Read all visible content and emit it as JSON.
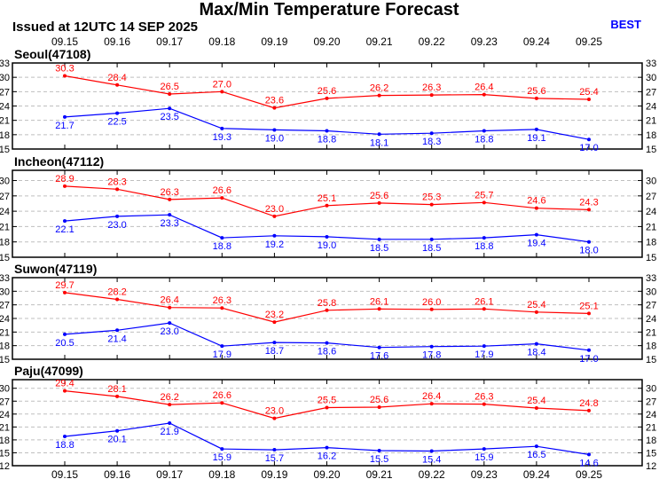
{
  "header": {
    "title": "Max/Min Temperature Forecast",
    "issued": "Issued at 12UTC 14 SEP 2025",
    "model_label": "BEST",
    "model_color": "#0000ff"
  },
  "colors": {
    "max_series": "#ff0000",
    "min_series": "#0000ff",
    "grid": "#bfbfbf"
  },
  "chart_data": [
    {
      "type": "line",
      "title": "Seoul(47108)",
      "x": [
        "09.15",
        "09.16",
        "09.17",
        "09.18",
        "09.19",
        "09.20",
        "09.21",
        "09.22",
        "09.23",
        "09.24",
        "09.25"
      ],
      "ylim": [
        15,
        33
      ],
      "yticks": [
        15,
        18,
        21,
        24,
        27,
        30,
        33
      ],
      "grid": true,
      "series": [
        {
          "values": [
            30.3,
            28.4,
            26.5,
            27.0,
            23.6,
            25.6,
            26.2,
            26.3,
            26.4,
            25.6,
            25.4
          ]
        },
        {
          "values": [
            21.7,
            22.5,
            23.5,
            19.3,
            19.0,
            18.8,
            18.1,
            18.3,
            18.8,
            19.1,
            17.0
          ]
        }
      ]
    },
    {
      "type": "line",
      "title": "Incheon(47112)",
      "x": [
        "09.15",
        "09.16",
        "09.17",
        "09.18",
        "09.19",
        "09.20",
        "09.21",
        "09.22",
        "09.23",
        "09.24",
        "09.25"
      ],
      "ylim": [
        15,
        32
      ],
      "yticks": [
        15,
        18,
        21,
        24,
        27,
        30
      ],
      "grid": true,
      "series": [
        {
          "values": [
            28.9,
            28.3,
            26.3,
            26.6,
            23.0,
            25.1,
            25.6,
            25.3,
            25.7,
            24.6,
            24.3
          ]
        },
        {
          "values": [
            22.1,
            23.0,
            23.3,
            18.8,
            19.2,
            19.0,
            18.5,
            18.5,
            18.8,
            19.4,
            18.0
          ]
        }
      ]
    },
    {
      "type": "line",
      "title": "Suwon(47119)",
      "x": [
        "09.15",
        "09.16",
        "09.17",
        "09.18",
        "09.19",
        "09.20",
        "09.21",
        "09.22",
        "09.23",
        "09.24",
        "09.25"
      ],
      "ylim": [
        15,
        33
      ],
      "yticks": [
        15,
        18,
        21,
        24,
        27,
        30,
        33
      ],
      "grid": true,
      "series": [
        {
          "values": [
            29.7,
            28.2,
            26.4,
            26.3,
            23.2,
            25.8,
            26.1,
            26.0,
            26.1,
            25.4,
            25.1
          ]
        },
        {
          "values": [
            20.5,
            21.4,
            23.0,
            17.9,
            18.7,
            18.6,
            17.6,
            17.8,
            17.9,
            18.4,
            17.0
          ]
        }
      ]
    },
    {
      "type": "line",
      "title": "Paju(47099)",
      "x": [
        "09.15",
        "09.16",
        "09.17",
        "09.18",
        "09.19",
        "09.20",
        "09.21",
        "09.22",
        "09.23",
        "09.24",
        "09.25"
      ],
      "ylim": [
        12,
        32
      ],
      "yticks": [
        12,
        15,
        18,
        21,
        24,
        27,
        30
      ],
      "grid": true,
      "series": [
        {
          "values": [
            29.4,
            28.1,
            26.2,
            26.6,
            23.0,
            25.5,
            25.6,
            26.4,
            26.3,
            25.4,
            24.8
          ]
        },
        {
          "values": [
            18.8,
            20.1,
            21.9,
            15.9,
            15.7,
            16.2,
            15.5,
            15.4,
            15.9,
            16.5,
            14.6
          ]
        }
      ]
    }
  ]
}
